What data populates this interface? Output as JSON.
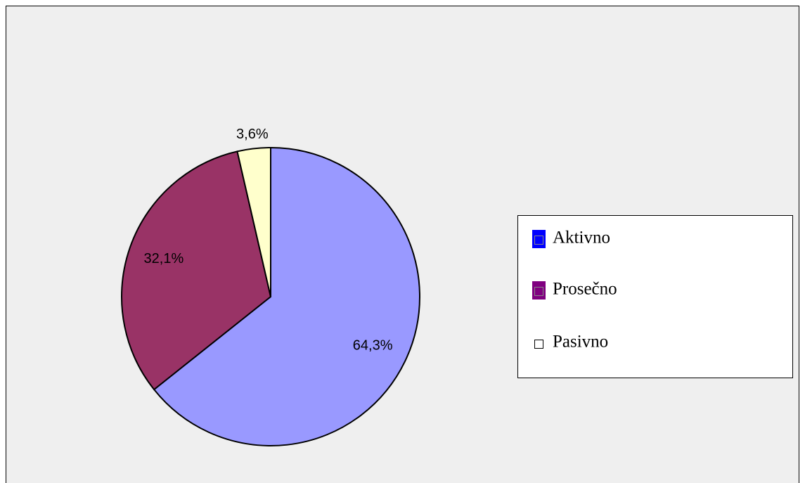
{
  "chart_data": {
    "type": "pie",
    "categories": [
      "Aktivno",
      "Prosečno",
      "Pasivno"
    ],
    "values": [
      64.3,
      32.1,
      3.6
    ],
    "value_labels": [
      "64,3%",
      "32,1%",
      "3,6%"
    ],
    "colors": [
      "#9999ff",
      "#993366",
      "#ffffcc"
    ],
    "legend_colors": [
      "#0000ff",
      "#800080",
      "#ffffff"
    ],
    "legend": "right"
  }
}
